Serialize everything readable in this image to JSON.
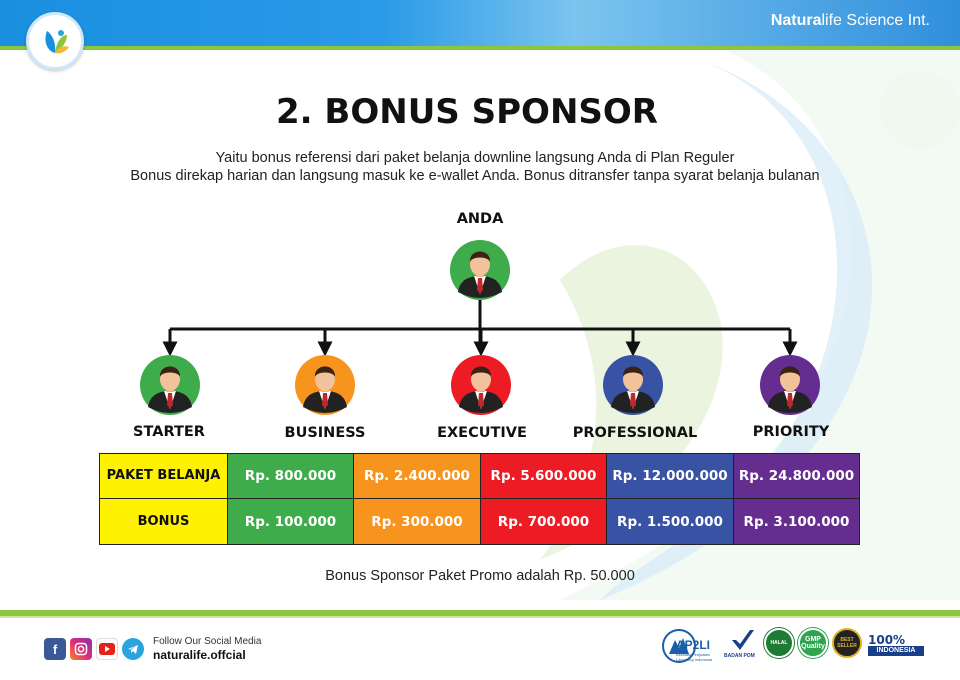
{
  "header": {
    "brand_bold": "Natura",
    "brand_rest": "life Science Int."
  },
  "title": "2. BONUS SPONSOR",
  "subtitle_lines": [
    "Yaitu bonus referensi dari paket belanja downline langsung Anda di Plan Reguler",
    "Bonus direkap harian dan langsung masuk ke e-wallet Anda. Bonus ditransfer tanpa syarat belanja bulanan"
  ],
  "tree": {
    "root": {
      "label": "ANDA",
      "color": "#3fac4c"
    },
    "children": [
      {
        "label": "STARTER",
        "color": "#3fac4c"
      },
      {
        "label": "BUSINESS",
        "color": "#f7941d"
      },
      {
        "label": "EXECUTIVE",
        "color": "#ed1c24"
      },
      {
        "label": "PROFESSIONAL",
        "color": "#3852a4"
      },
      {
        "label": "PRIORITY",
        "color": "#662d91"
      }
    ]
  },
  "table": {
    "row_headers": [
      "PAKET BELANJA",
      "BONUS"
    ],
    "paket_belanja": [
      "Rp. 800.000",
      "Rp. 2.400.000",
      "Rp. 5.600.000",
      "Rp. 12.000.000",
      "Rp. 24.800.000"
    ],
    "bonus": [
      "Rp. 100.000",
      "Rp. 300.000",
      "Rp. 700.000",
      "Rp. 1.500.000",
      "Rp. 3.100.000"
    ]
  },
  "note": "Bonus Sponsor Paket Promo adalah Rp. 50.000",
  "footer": {
    "follow_text": "Follow Our Social Media",
    "handle": "naturalife.offcial",
    "social_icons": [
      "facebook-icon",
      "instagram-icon",
      "youtube-icon",
      "telegram-icon"
    ],
    "certifications": {
      "ap2li": "AP2LI",
      "ap2li_sub": "Asosiasi Penjualan Langsung Indonesia",
      "badan_pom": "BADAN POM",
      "halal": "HALAL",
      "gmp": "GMP Quality",
      "best_seller": "BEST SELLER",
      "hundred": "100%",
      "indonesia": "INDONESIA"
    }
  },
  "colors": {
    "starter": "#3fac4c",
    "business": "#f7941d",
    "executive": "#ed1c24",
    "professional": "#3852a4",
    "priority": "#662d91",
    "header_cell": "#fff200",
    "accent_green": "#8cc63f",
    "accent_blue": "#1a8fe0"
  }
}
